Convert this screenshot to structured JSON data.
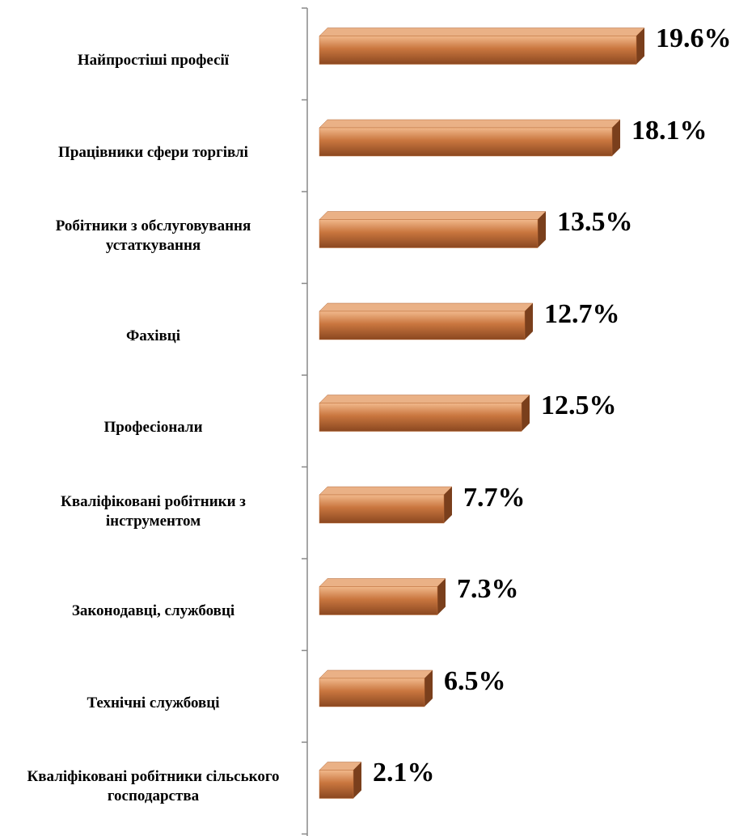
{
  "chart_data": {
    "type": "bar",
    "orientation": "horizontal",
    "categories": [
      "Найпростіші професії",
      "Працівники сфери торгівлі",
      "Робітники з обслуговування устаткування",
      "Фахівці",
      "Професіонали",
      "Кваліфіковані робітники з інструментом",
      "Законодавці, службовці",
      "Технічні службовці",
      "Кваліфіковані робітники сільського господарства"
    ],
    "values": [
      19.6,
      18.1,
      13.5,
      12.7,
      12.5,
      7.7,
      7.3,
      6.5,
      2.1
    ],
    "value_labels": [
      "19.6%",
      "18.1%",
      "13.5%",
      "12.7%",
      "12.5%",
      "7.7%",
      "7.3%",
      "6.5%",
      "2.1%"
    ],
    "color": "#c0703a"
  }
}
